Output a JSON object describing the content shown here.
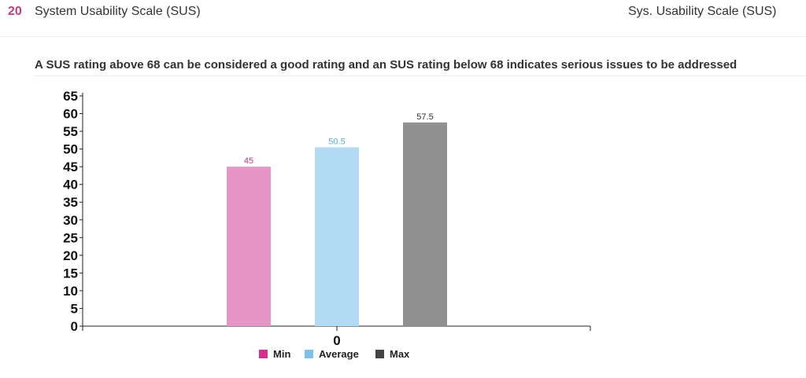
{
  "header": {
    "question_number": "20",
    "title": "System Usability Scale (SUS)",
    "short_title": "Sys. Usability Scale (SUS)"
  },
  "description": "A SUS rating above 68 can be considered a good rating and an SUS rating below 68 indicates serious issues to be addressed",
  "chart_data": {
    "type": "bar",
    "categories": [
      "0"
    ],
    "series": [
      {
        "name": "Min",
        "values": [
          45
        ],
        "color": "#e695c7",
        "label_color": "#c23b8a",
        "legend_color": "#d62f8e"
      },
      {
        "name": "Average",
        "values": [
          50.5
        ],
        "color": "#b3dbf5",
        "label_color": "#5aaedd",
        "legend_color": "#7cc0ec"
      },
      {
        "name": "Max",
        "values": [
          57.5
        ],
        "color": "#919191",
        "label_color": "#333333",
        "legend_color": "#444444"
      }
    ],
    "yticks": [
      0,
      5,
      10,
      15,
      20,
      25,
      30,
      35,
      40,
      45,
      50,
      55,
      60,
      65
    ],
    "ylim": [
      0,
      65
    ],
    "title": "",
    "xlabel": "",
    "ylabel": "",
    "legend_position": "bottom-center"
  }
}
